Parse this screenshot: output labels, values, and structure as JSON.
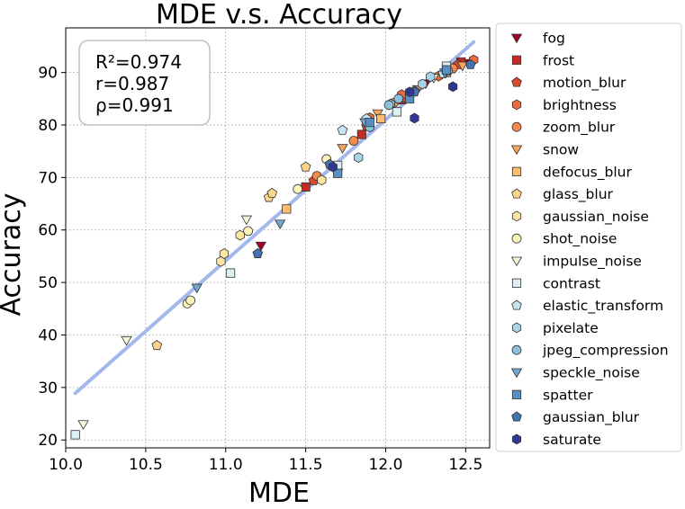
{
  "chart_data": {
    "type": "scatter",
    "title": "MDE  v.s.  Accuracy",
    "xlabel": "MDE",
    "ylabel": "Accuracy",
    "xlim": [
      10.0,
      12.65
    ],
    "ylim": [
      18.5,
      98.5
    ],
    "xticks": [
      10.0,
      10.5,
      11.0,
      11.5,
      12.0,
      12.5
    ],
    "xtick_labels": [
      "10.0",
      "10.5",
      "11.0",
      "11.5",
      "12.0",
      "12.5"
    ],
    "yticks": [
      20,
      30,
      40,
      50,
      60,
      70,
      80,
      90
    ],
    "ytick_labels": [
      "20",
      "30",
      "40",
      "50",
      "60",
      "70",
      "80",
      "90"
    ],
    "grid": true,
    "legend_position": "outside-right",
    "stats": [
      "R²=0.974",
      "r=0.987",
      "ρ=0.991"
    ],
    "fit_line": {
      "color": "#a3b8ec",
      "x": [
        10.06,
        12.55
      ],
      "y": [
        28.9,
        95.8
      ]
    },
    "series": [
      {
        "name": "fog",
        "marker": "triangle-down",
        "color": "#a50026",
        "x": [
          11.22,
          12.25,
          12.43,
          12.52
        ],
        "y": [
          57.0,
          87.9,
          90.8,
          91.8
        ]
      },
      {
        "name": "frost",
        "marker": "square",
        "color": "#c62a25",
        "x": [
          11.5,
          11.85,
          12.1,
          12.47
        ],
        "y": [
          68.2,
          78.2,
          84.8,
          92.0
        ]
      },
      {
        "name": "motion_blur",
        "marker": "pentagon",
        "color": "#db4a2c",
        "x": [
          11.55,
          11.88,
          12.12,
          12.45
        ],
        "y": [
          69.4,
          79.8,
          85.2,
          91.5
        ]
      },
      {
        "name": "brightness",
        "marker": "hexagon",
        "color": "#ec6a3c",
        "x": [
          11.9,
          12.1,
          12.33,
          12.55
        ],
        "y": [
          81.4,
          85.8,
          89.3,
          92.4
        ]
      },
      {
        "name": "zoom_blur",
        "marker": "circle",
        "color": "#f5894e",
        "x": [
          11.57,
          11.8,
          12.05,
          12.42
        ],
        "y": [
          70.3,
          77.0,
          84.2,
          90.8
        ]
      },
      {
        "name": "snow",
        "marker": "triangle-down",
        "color": "#f9a45d",
        "x": [
          11.73,
          11.95,
          12.2,
          12.48
        ],
        "y": [
          75.6,
          82.2,
          86.8,
          91.3
        ]
      },
      {
        "name": "defocus_blur",
        "marker": "square",
        "color": "#fbbe6f",
        "x": [
          11.38,
          11.97,
          12.38
        ],
        "y": [
          64.0,
          81.2,
          90.0
        ]
      },
      {
        "name": "glass_blur",
        "marker": "pentagon",
        "color": "#fdd588",
        "x": [
          10.57,
          11.27,
          11.5,
          11.29
        ],
        "y": [
          38.0,
          66.2,
          72.0,
          67.0
        ]
      },
      {
        "name": "gaussian_noise",
        "marker": "hexagon",
        "color": "#fee6a0",
        "x": [
          10.97,
          11.09,
          11.6,
          10.99
        ],
        "y": [
          54.0,
          59.0,
          69.5,
          55.5
        ]
      },
      {
        "name": "shot_noise",
        "marker": "circle",
        "color": "#fcf4bb",
        "x": [
          10.76,
          11.14,
          11.45,
          11.63,
          10.78
        ],
        "y": [
          46.0,
          59.8,
          67.8,
          73.5,
          46.6
        ]
      },
      {
        "name": "impulse_noise",
        "marker": "triangle-down",
        "color": "#f1f8d9",
        "x": [
          10.11,
          10.38,
          11.13,
          11.7,
          12.3
        ],
        "y": [
          23.0,
          39.0,
          62.0,
          70.9,
          89.0
        ]
      },
      {
        "name": "contrast",
        "marker": "square",
        "color": "#dcf0f4",
        "x": [
          10.06,
          11.03,
          11.7,
          12.07,
          12.38
        ],
        "y": [
          21.0,
          51.8,
          72.3,
          82.5,
          91.2
        ]
      },
      {
        "name": "elastic_transform",
        "marker": "pentagon",
        "color": "#c4e4ef",
        "x": [
          11.73,
          11.88,
          12.18,
          12.36
        ],
        "y": [
          79.0,
          81.2,
          86.5,
          89.8
        ]
      },
      {
        "name": "pixelate",
        "marker": "hexagon",
        "color": "#a8d4e7",
        "x": [
          11.83,
          12.03,
          12.23,
          12.28
        ],
        "y": [
          73.8,
          84.0,
          87.8,
          89.2
        ]
      },
      {
        "name": "jpeg_compression",
        "marker": "circle",
        "color": "#8cc1dd",
        "x": [
          11.9,
          12.02,
          12.08,
          12.39
        ],
        "y": [
          79.6,
          83.8,
          85.0,
          90.3
        ]
      },
      {
        "name": "speckle_noise",
        "marker": "triangle-down",
        "color": "#72a9d0",
        "x": [
          10.82,
          11.34,
          11.87,
          12.37
        ],
        "y": [
          49.0,
          61.2,
          80.5,
          90.0
        ]
      },
      {
        "name": "spatter",
        "marker": "square",
        "color": "#588fc1",
        "x": [
          11.7,
          11.9,
          12.15,
          12.38
        ],
        "y": [
          70.8,
          80.5,
          85.0,
          90.5
        ]
      },
      {
        "name": "gaussian_blur",
        "marker": "pentagon",
        "color": "#4472b1",
        "x": [
          11.2,
          11.65,
          12.18,
          12.53
        ],
        "y": [
          55.5,
          72.5,
          86.3,
          91.5
        ]
      },
      {
        "name": "saturate",
        "marker": "hexagon",
        "color": "#313695",
        "x": [
          11.67,
          12.18,
          12.42,
          12.15
        ],
        "y": [
          72.0,
          81.3,
          87.3,
          86.3
        ]
      }
    ]
  }
}
